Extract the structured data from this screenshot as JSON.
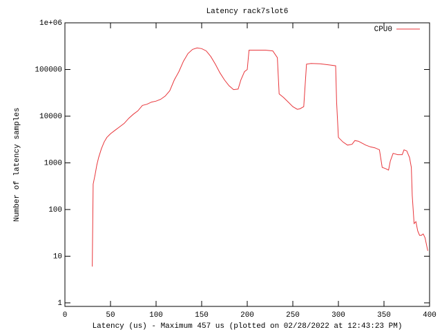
{
  "chart_data": {
    "type": "line",
    "title": "Latency rack7slot6",
    "x_label": "Latency (us) - Maximum 457 us (plotted on 02/28/2022 at 12:43:23 PM)",
    "y_label": "Number of latency samples",
    "log_y": true,
    "legend": "top-right",
    "xlim": [
      0,
      400
    ],
    "xticks": [
      0,
      50,
      100,
      150,
      200,
      250,
      300,
      350,
      400
    ],
    "ylim": [
      0.84,
      1000000
    ],
    "yticks": [
      1,
      10,
      100,
      1000,
      10000,
      100000,
      {
        "value": 1000000,
        "label": "1e+06"
      }
    ],
    "series": [
      {
        "name": "CPU0",
        "color": "#e8353a",
        "x": [
          30,
          31,
          33,
          35,
          37,
          40,
          43,
          46,
          50,
          55,
          60,
          65,
          70,
          75,
          80,
          85,
          90,
          95,
          100,
          105,
          110,
          115,
          120,
          125,
          130,
          135,
          140,
          145,
          150,
          155,
          160,
          165,
          170,
          175,
          180,
          185,
          190,
          193,
          197,
          200,
          202,
          210,
          220,
          228,
          233,
          235,
          240,
          245,
          250,
          255,
          258,
          262,
          265,
          270,
          280,
          290,
          297,
          298,
          300,
          305,
          310,
          315,
          318,
          322,
          325,
          330,
          335,
          340,
          345,
          348,
          352,
          355,
          357,
          360,
          365,
          370,
          372,
          375,
          378,
          380,
          381,
          383,
          385,
          387,
          389,
          391,
          393,
          395,
          398
        ],
        "values": [
          6,
          350,
          550,
          900,
          1300,
          2000,
          2800,
          3500,
          4200,
          5000,
          5900,
          7000,
          9000,
          11000,
          13000,
          17000,
          18000,
          20000,
          21000,
          23000,
          27000,
          35000,
          60000,
          90000,
          150000,
          220000,
          270000,
          290000,
          280000,
          250000,
          190000,
          130000,
          85000,
          60000,
          45000,
          37000,
          38000,
          60000,
          90000,
          100000,
          260000,
          260000,
          260000,
          250000,
          180000,
          30000,
          25000,
          20000,
          16000,
          14000,
          14500,
          16000,
          130000,
          135000,
          132000,
          125000,
          120000,
          20000,
          3500,
          2800,
          2400,
          2500,
          3000,
          2900,
          2700,
          2400,
          2200,
          2100,
          1900,
          800,
          750,
          700,
          1100,
          1600,
          1500,
          1500,
          1900,
          1800,
          1300,
          800,
          200,
          50,
          55,
          35,
          28,
          28,
          30,
          25,
          13
        ]
      }
    ]
  }
}
